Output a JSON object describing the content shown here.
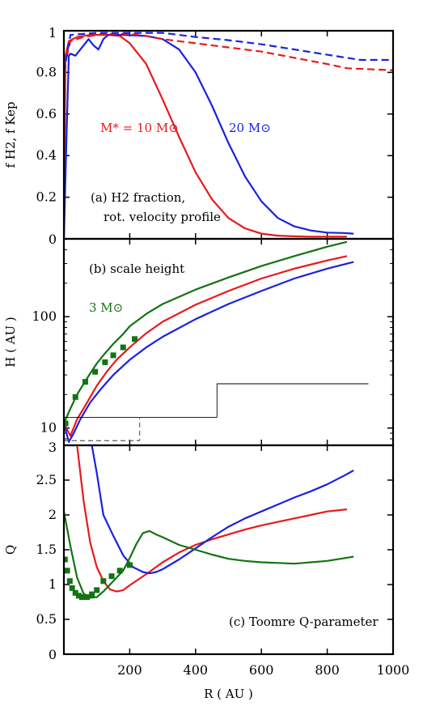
{
  "chart_data": [
    {
      "panel": "a",
      "type": "line",
      "annotation": "(a) H2 fraction,",
      "annotation2": "rot. velocity profile",
      "ylabel": "f H2, f Kep",
      "xlim": [
        0,
        1000
      ],
      "ylim": [
        0,
        1
      ],
      "yticks": [
        "0",
        "0.2",
        "0.4",
        "0.6",
        "0.8",
        "1"
      ],
      "labels": [
        {
          "text": "M* = 10 M⊙",
          "color": "#e8191c"
        },
        {
          "text": "20 M⊙",
          "color": "#1a21e0"
        }
      ],
      "series": [
        {
          "color": "#e8191c",
          "dash": false,
          "points": [
            [
              0,
              0
            ],
            [
              5,
              0.88
            ],
            [
              15,
              0.95
            ],
            [
              40,
              0.97
            ],
            [
              80,
              0.98
            ],
            [
              140,
              0.98
            ],
            [
              170,
              0.975
            ],
            [
              200,
              0.94
            ],
            [
              250,
              0.84
            ],
            [
              300,
              0.67
            ],
            [
              350,
              0.49
            ],
            [
              400,
              0.32
            ],
            [
              450,
              0.19
            ],
            [
              500,
              0.1
            ],
            [
              550,
              0.05
            ],
            [
              600,
              0.025
            ],
            [
              650,
              0.015
            ],
            [
              700,
              0.012
            ],
            [
              750,
              0.01
            ],
            [
              800,
              0.01
            ],
            [
              860,
              0.01
            ]
          ]
        },
        {
          "color": "#1a21e0",
          "dash": false,
          "points": [
            [
              0,
              0
            ],
            [
              8,
              0.5
            ],
            [
              15,
              0.88
            ],
            [
              20,
              0.89
            ],
            [
              35,
              0.88
            ],
            [
              55,
              0.92
            ],
            [
              75,
              0.96
            ],
            [
              90,
              0.93
            ],
            [
              105,
              0.91
            ],
            [
              120,
              0.96
            ],
            [
              135,
              0.98
            ],
            [
              180,
              0.98
            ],
            [
              250,
              0.975
            ],
            [
              300,
              0.96
            ],
            [
              350,
              0.91
            ],
            [
              400,
              0.8
            ],
            [
              450,
              0.64
            ],
            [
              500,
              0.46
            ],
            [
              550,
              0.3
            ],
            [
              600,
              0.18
            ],
            [
              650,
              0.1
            ],
            [
              700,
              0.06
            ],
            [
              750,
              0.04
            ],
            [
              800,
              0.03
            ],
            [
              850,
              0.028
            ],
            [
              880,
              0.025
            ]
          ]
        },
        {
          "color": "#e8191c",
          "dash": true,
          "points": [
            [
              0,
              0.82
            ],
            [
              20,
              0.95
            ],
            [
              60,
              0.97
            ],
            [
              120,
              0.985
            ],
            [
              200,
              0.985
            ],
            [
              250,
              0.975
            ],
            [
              300,
              0.96
            ],
            [
              400,
              0.94
            ],
            [
              500,
              0.92
            ],
            [
              600,
              0.9
            ],
            [
              700,
              0.87
            ],
            [
              800,
              0.84
            ],
            [
              860,
              0.82
            ],
            [
              1000,
              0.81
            ]
          ]
        },
        {
          "color": "#1a21e0",
          "dash": true,
          "points": [
            [
              0,
              0.8
            ],
            [
              20,
              0.98
            ],
            [
              100,
              0.99
            ],
            [
              200,
              0.99
            ],
            [
              300,
              0.99
            ],
            [
              400,
              0.97
            ],
            [
              500,
              0.955
            ],
            [
              600,
              0.935
            ],
            [
              700,
              0.91
            ],
            [
              800,
              0.885
            ],
            [
              900,
              0.86
            ],
            [
              1000,
              0.86
            ]
          ]
        }
      ]
    },
    {
      "panel": "b",
      "type": "line",
      "log_y": true,
      "annotation": "(b) scale height",
      "ylabel": "H ( AU )",
      "xlim": [
        0,
        1000
      ],
      "ylim": [
        7,
        500
      ],
      "yticks": [
        "10",
        "100"
      ],
      "labels": [
        {
          "text": "3 M⊙",
          "color": "#137313"
        }
      ],
      "series": [
        {
          "color": "#137313",
          "dash": false,
          "points": [
            [
              0,
              11
            ],
            [
              20,
              15
            ],
            [
              40,
              20
            ],
            [
              60,
              25
            ],
            [
              80,
              31
            ],
            [
              100,
              38
            ],
            [
              120,
              45
            ],
            [
              150,
              57
            ],
            [
              180,
              70
            ],
            [
              200,
              82
            ],
            [
              250,
              106
            ],
            [
              300,
              130
            ],
            [
              400,
              175
            ],
            [
              500,
              225
            ],
            [
              600,
              285
            ],
            [
              700,
              350
            ],
            [
              800,
              425
            ],
            [
              860,
              470
            ]
          ]
        },
        {
          "color": "#e8191c",
          "dash": false,
          "points": [
            [
              0,
              11
            ],
            [
              20,
              8.5
            ],
            [
              40,
              12
            ],
            [
              60,
              15
            ],
            [
              80,
              19
            ],
            [
              100,
              24
            ],
            [
              130,
              32
            ],
            [
              160,
              41
            ],
            [
              200,
              53
            ],
            [
              250,
              71
            ],
            [
              300,
              90
            ],
            [
              400,
              128
            ],
            [
              500,
              170
            ],
            [
              600,
              220
            ],
            [
              700,
              270
            ],
            [
              800,
              320
            ],
            [
              860,
              350
            ]
          ]
        },
        {
          "color": "#1a21e0",
          "dash": false,
          "points": [
            [
              0,
              11
            ],
            [
              15,
              7.5
            ],
            [
              30,
              9
            ],
            [
              50,
              12
            ],
            [
              80,
              17
            ],
            [
              110,
              22
            ],
            [
              150,
              30
            ],
            [
              200,
              41
            ],
            [
              250,
              53
            ],
            [
              300,
              66
            ],
            [
              400,
              95
            ],
            [
              500,
              130
            ],
            [
              600,
              170
            ],
            [
              700,
              220
            ],
            [
              800,
              270
            ],
            [
              880,
              310
            ]
          ]
        },
        {
          "color": "#000000",
          "dash": false,
          "step": true,
          "width": 0.9,
          "points": [
            [
              0,
              12.5
            ],
            [
              465,
              12.5
            ],
            [
              465,
              25
            ],
            [
              925,
              25
            ]
          ]
        },
        {
          "color": "#6b6b6b",
          "dash": true,
          "step": true,
          "width": 1.3,
          "points": [
            [
              0,
              7.7
            ],
            [
              230,
              7.7
            ],
            [
              230,
              12.5
            ]
          ]
        }
      ],
      "markers": {
        "color": "#137313",
        "points": [
          [
            5,
            11
          ],
          [
            35,
            19
          ],
          [
            65,
            26
          ],
          [
            95,
            32
          ],
          [
            125,
            39
          ],
          [
            150,
            45
          ],
          [
            180,
            53
          ],
          [
            215,
            63
          ]
        ]
      }
    },
    {
      "panel": "c",
      "type": "line",
      "annotation": "(c) Toomre Q-parameter",
      "ylabel": "Q",
      "xlabel": "R ( AU )",
      "xlim": [
        0,
        1000
      ],
      "ylim": [
        0,
        3
      ],
      "yticks": [
        "0",
        "0.5",
        "1",
        "1.5",
        "2",
        "2.5",
        "3"
      ],
      "xticks": [
        "200",
        "400",
        "600",
        "800",
        "1000"
      ],
      "series": [
        {
          "color": "#e8191c",
          "dash": false,
          "points": [
            [
              40,
              3
            ],
            [
              60,
              2.2
            ],
            [
              80,
              1.6
            ],
            [
              100,
              1.25
            ],
            [
              120,
              1.05
            ],
            [
              140,
              0.93
            ],
            [
              160,
              0.9
            ],
            [
              180,
              0.92
            ],
            [
              200,
              0.99
            ],
            [
              250,
              1.15
            ],
            [
              300,
              1.32
            ],
            [
              350,
              1.46
            ],
            [
              400,
              1.57
            ],
            [
              450,
              1.65
            ],
            [
              500,
              1.72
            ],
            [
              550,
              1.79
            ],
            [
              600,
              1.85
            ],
            [
              650,
              1.9
            ],
            [
              700,
              1.95
            ],
            [
              750,
              2.0
            ],
            [
              800,
              2.05
            ],
            [
              860,
              2.08
            ]
          ]
        },
        {
          "color": "#1a21e0",
          "dash": false,
          "points": [
            [
              85,
              3
            ],
            [
              100,
              2.6
            ],
            [
              120,
              2.0
            ],
            [
              150,
              1.7
            ],
            [
              180,
              1.42
            ],
            [
              210,
              1.25
            ],
            [
              240,
              1.18
            ],
            [
              260,
              1.16
            ],
            [
              280,
              1.18
            ],
            [
              300,
              1.22
            ],
            [
              350,
              1.36
            ],
            [
              400,
              1.52
            ],
            [
              450,
              1.68
            ],
            [
              500,
              1.83
            ],
            [
              550,
              1.95
            ],
            [
              600,
              2.05
            ],
            [
              650,
              2.15
            ],
            [
              700,
              2.25
            ],
            [
              750,
              2.34
            ],
            [
              800,
              2.44
            ],
            [
              850,
              2.56
            ],
            [
              880,
              2.64
            ]
          ]
        },
        {
          "color": "#137313",
          "dash": false,
          "points": [
            [
              0,
              2.05
            ],
            [
              20,
              1.55
            ],
            [
              40,
              1.1
            ],
            [
              60,
              0.87
            ],
            [
              80,
              0.81
            ],
            [
              100,
              0.82
            ],
            [
              120,
              0.9
            ],
            [
              150,
              1.05
            ],
            [
              180,
              1.2
            ],
            [
              200,
              1.38
            ],
            [
              220,
              1.58
            ],
            [
              240,
              1.74
            ],
            [
              260,
              1.77
            ],
            [
              280,
              1.72
            ],
            [
              300,
              1.68
            ],
            [
              350,
              1.57
            ],
            [
              400,
              1.5
            ],
            [
              450,
              1.43
            ],
            [
              500,
              1.37
            ],
            [
              550,
              1.34
            ],
            [
              600,
              1.32
            ],
            [
              650,
              1.31
            ],
            [
              700,
              1.3
            ],
            [
              750,
              1.32
            ],
            [
              800,
              1.34
            ],
            [
              880,
              1.4
            ]
          ]
        }
      ],
      "markers": {
        "color": "#137313",
        "points": [
          [
            3,
            1.36
          ],
          [
            10,
            1.2
          ],
          [
            18,
            1.05
          ],
          [
            25,
            0.95
          ],
          [
            35,
            0.88
          ],
          [
            45,
            0.84
          ],
          [
            55,
            0.82
          ],
          [
            70,
            0.82
          ],
          [
            85,
            0.86
          ],
          [
            100,
            0.92
          ],
          [
            120,
            1.05
          ],
          [
            145,
            1.12
          ],
          [
            170,
            1.2
          ],
          [
            200,
            1.28
          ]
        ]
      }
    }
  ]
}
